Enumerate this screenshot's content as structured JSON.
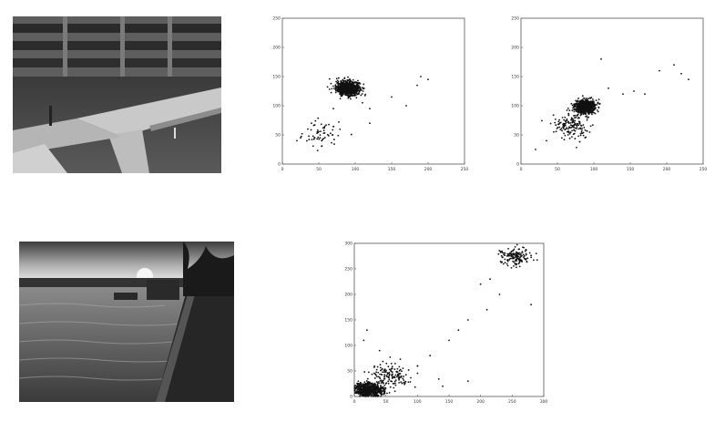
{
  "photos": [
    {
      "subject": "parking-garage-walkway"
    },
    {
      "subject": "river-sunset"
    }
  ],
  "chart_data": [
    {
      "type": "scatter",
      "title": "",
      "xlabel": "",
      "ylabel": "",
      "xlim": [
        0,
        250
      ],
      "ylim": [
        0,
        250
      ],
      "xticks": [
        "0",
        "50",
        "100",
        "150",
        "200",
        "250"
      ],
      "yticks": [
        "0",
        "50",
        "100",
        "150",
        "200",
        "250"
      ],
      "grid": false,
      "clusters": [
        {
          "cx": 90,
          "cy": 130,
          "sx": 8,
          "sy": 6,
          "n": 900
        },
        {
          "cx": 55,
          "cy": 50,
          "sx": 15,
          "sy": 12,
          "n": 60
        }
      ],
      "points": [
        [
          20,
          40
        ],
        [
          25,
          45
        ],
        [
          35,
          60
        ],
        [
          40,
          70
        ],
        [
          70,
          95
        ],
        [
          110,
          105
        ],
        [
          120,
          95
        ],
        [
          170,
          100
        ],
        [
          185,
          135
        ],
        [
          190,
          150
        ],
        [
          200,
          145
        ],
        [
          120,
          70
        ],
        [
          150,
          115
        ]
      ]
    },
    {
      "type": "scatter",
      "title": "",
      "xlabel": "",
      "ylabel": "",
      "xlim": [
        0,
        250
      ],
      "ylim": [
        0,
        250
      ],
      "xticks": [
        "0",
        "50",
        "100",
        "150",
        "200",
        "250"
      ],
      "yticks": [
        "0",
        "50",
        "100",
        "150",
        "200",
        "250"
      ],
      "grid": false,
      "clusters": [
        {
          "cx": 88,
          "cy": 98,
          "sx": 7,
          "sy": 6,
          "n": 700
        },
        {
          "cx": 68,
          "cy": 65,
          "sx": 12,
          "sy": 10,
          "n": 150
        }
      ],
      "points": [
        [
          20,
          25
        ],
        [
          35,
          40
        ],
        [
          45,
          55
        ],
        [
          140,
          120
        ],
        [
          155,
          125
        ],
        [
          170,
          120
        ],
        [
          190,
          160
        ],
        [
          210,
          170
        ],
        [
          220,
          155
        ],
        [
          230,
          145
        ],
        [
          110,
          180
        ],
        [
          120,
          130
        ]
      ]
    },
    {
      "type": "scatter",
      "title": "",
      "xlabel": "",
      "ylabel": "",
      "xlim": [
        0,
        300
      ],
      "ylim": [
        0,
        300
      ],
      "xticks": [
        "0",
        "50",
        "100",
        "150",
        "200",
        "250",
        "300"
      ],
      "yticks": [
        "0",
        "50",
        "100",
        "150",
        "200",
        "250",
        "300"
      ],
      "grid": false,
      "clusters": [
        {
          "cx": 22,
          "cy": 12,
          "sx": 12,
          "sy": 7,
          "n": 700
        },
        {
          "cx": 60,
          "cy": 40,
          "sx": 18,
          "sy": 14,
          "n": 150
        },
        {
          "cx": 255,
          "cy": 275,
          "sx": 12,
          "sy": 9,
          "n": 150
        }
      ],
      "points": [
        [
          100,
          60
        ],
        [
          120,
          80
        ],
        [
          150,
          110
        ],
        [
          165,
          130
        ],
        [
          180,
          150
        ],
        [
          210,
          170
        ],
        [
          230,
          200
        ],
        [
          215,
          230
        ],
        [
          280,
          180
        ],
        [
          140,
          20
        ],
        [
          180,
          30
        ],
        [
          20,
          130
        ],
        [
          15,
          110
        ],
        [
          40,
          90
        ],
        [
          200,
          220
        ]
      ]
    }
  ]
}
